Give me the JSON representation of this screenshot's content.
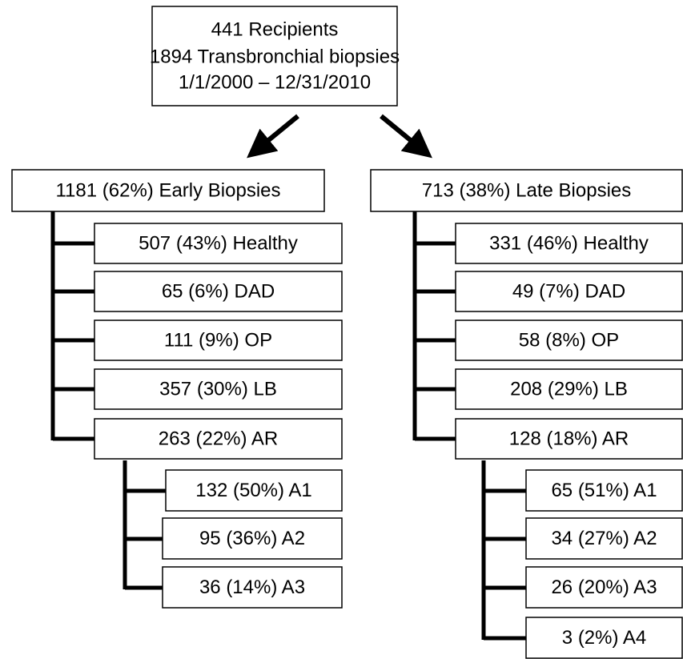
{
  "root": {
    "lines": [
      "441 Recipients",
      "1894 Transbronchial biopsies",
      "1/1/2000 – 12/31/2010"
    ]
  },
  "branches": [
    {
      "label": "1181 (62%) Early Biopsies",
      "children": [
        "507 (43%) Healthy",
        "65 (6%) DAD",
        "111 (9%) OP",
        "357 (30%) LB",
        "263 (22%) AR"
      ],
      "ar_subtypes": [
        "132 (50%) A1",
        "95 (36%) A2",
        "36 (14%) A3"
      ]
    },
    {
      "label": "713 (38%) Late Biopsies",
      "children": [
        "331 (46%) Healthy",
        "49 (7%) DAD",
        "58 (8%) OP",
        "208 (29%) LB",
        "128 (18%) AR"
      ],
      "ar_subtypes": [
        "65 (51%) A1",
        "34 (27%) A2",
        "26 (20%) A3",
        "3 (2%) A4"
      ]
    }
  ]
}
